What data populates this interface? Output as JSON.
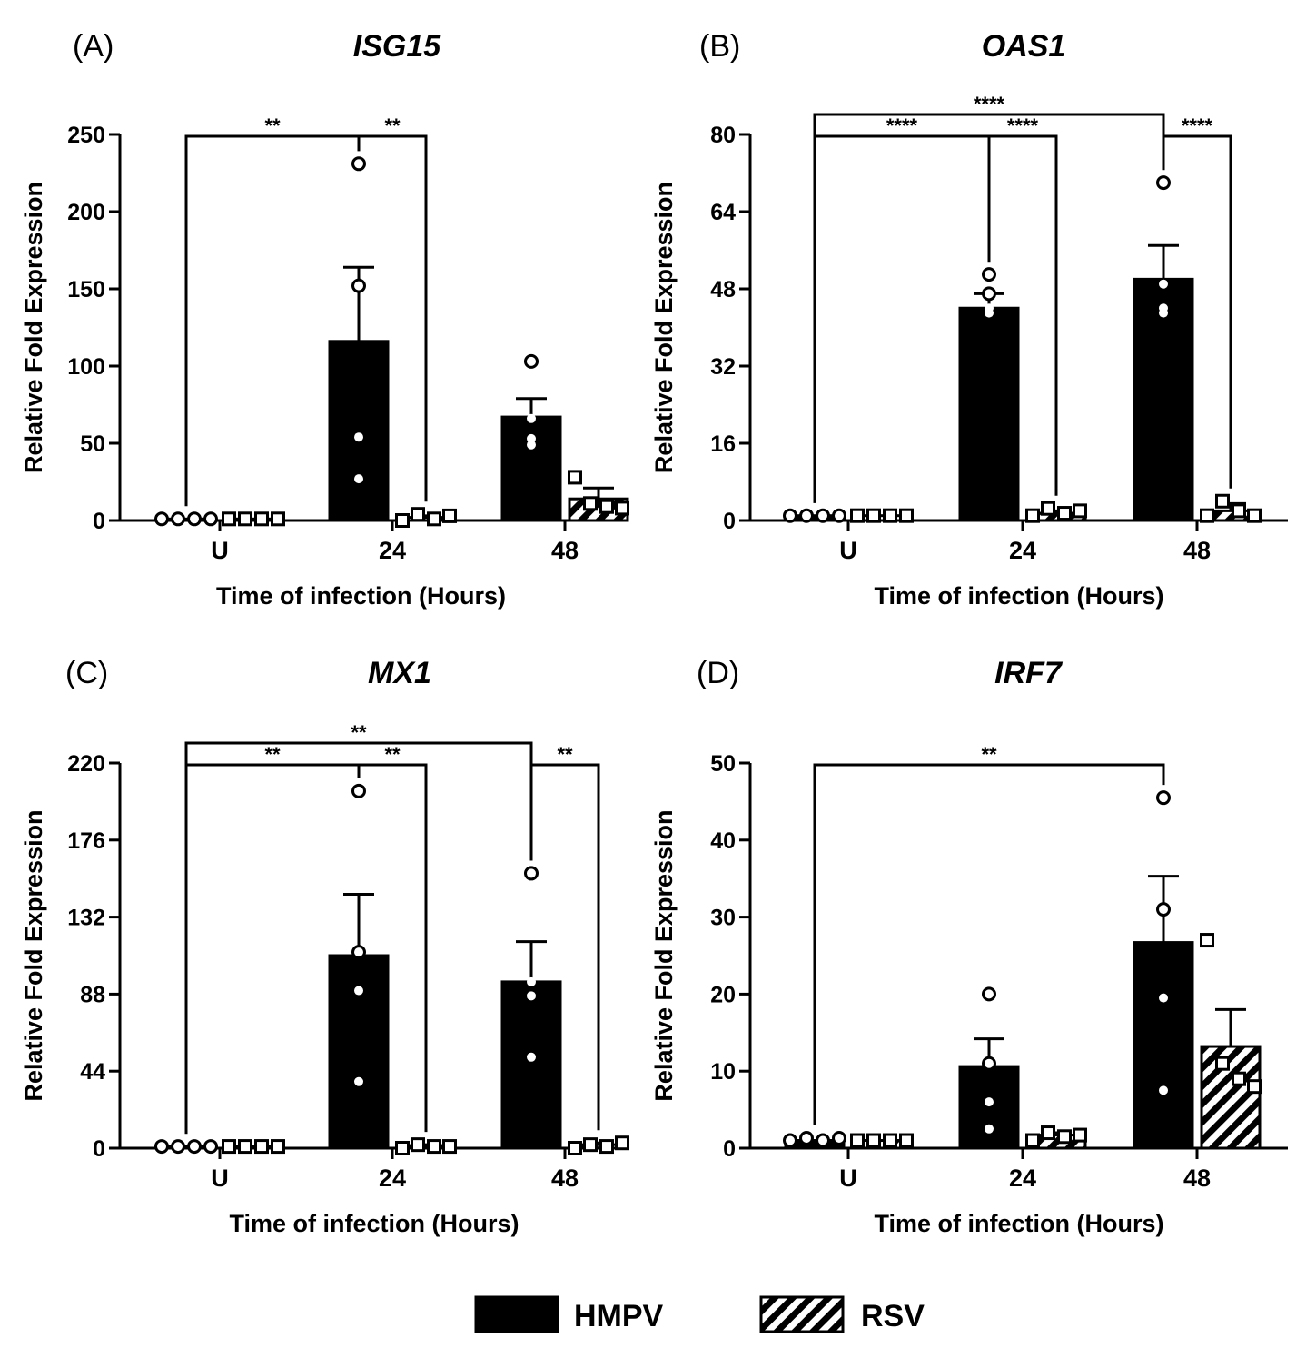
{
  "figure": {
    "legend": [
      {
        "name": "HMPV",
        "fill": "solid"
      },
      {
        "name": "RSV",
        "fill": "hatch"
      }
    ]
  },
  "chart_data": [
    {
      "type": "bar",
      "panel_label": "(A)",
      "title": "ISG15",
      "xlabel": "Time of infection (Hours)",
      "ylabel": "Relative Fold Expression",
      "categories": [
        "U",
        "24",
        "48"
      ],
      "ylim": [
        0,
        250
      ],
      "yticks": [
        0,
        50,
        100,
        150,
        200,
        250
      ],
      "series": [
        {
          "name": "HMPV",
          "values": [
            1,
            116,
            67
          ],
          "errors": [
            0,
            48,
            12
          ],
          "points": [
            [
              1,
              1,
              1,
              1
            ],
            [
              231,
              152,
              54,
              27
            ],
            [
              103,
              66,
              53,
              49
            ]
          ]
        },
        {
          "name": "RSV",
          "values": [
            1,
            2,
            14
          ],
          "errors": [
            0,
            1,
            7
          ],
          "points": [
            [
              1,
              1,
              1,
              1
            ],
            [
              0,
              4,
              1,
              3
            ],
            [
              28,
              11,
              9,
              8
            ]
          ]
        }
      ],
      "significance": [
        {
          "from": "U:HMPV",
          "to": "24:HMPV",
          "label": "**",
          "level": 1
        },
        {
          "from": "24:HMPV",
          "to": "24:RSV",
          "label": "**",
          "level": 1
        }
      ]
    },
    {
      "type": "bar",
      "panel_label": "(B)",
      "title": "OAS1",
      "xlabel": "Time of infection (Hours)",
      "ylabel": "Relative Fold Expression",
      "categories": [
        "U",
        "24",
        "48"
      ],
      "ylim": [
        0,
        80
      ],
      "yticks": [
        0,
        16,
        32,
        48,
        64,
        80
      ],
      "series": [
        {
          "name": "HMPV",
          "values": [
            1,
            44,
            50
          ],
          "errors": [
            0,
            3,
            7
          ],
          "points": [
            [
              1,
              1,
              1,
              1
            ],
            [
              51,
              47,
              43,
              44
            ],
            [
              70,
              49,
              43,
              44
            ]
          ]
        },
        {
          "name": "RSV",
          "values": [
            1,
            1.5,
            2
          ],
          "errors": [
            0,
            0.5,
            1.5
          ],
          "points": [
            [
              1,
              1,
              1,
              1
            ],
            [
              1,
              2.5,
              1.5,
              2
            ],
            [
              1,
              4,
              2,
              1
            ]
          ]
        }
      ],
      "significance": [
        {
          "from": "U:HMPV",
          "to": "48:HMPV",
          "label": "****",
          "level": 2
        },
        {
          "from": "U:HMPV",
          "to": "24:HMPV",
          "label": "****",
          "level": 1
        },
        {
          "from": "24:HMPV",
          "to": "24:RSV",
          "label": "****",
          "level": 1
        },
        {
          "from": "48:HMPV",
          "to": "48:RSV",
          "label": "****",
          "level": 1
        }
      ]
    },
    {
      "type": "bar",
      "panel_label": "(C)",
      "title": "MX1",
      "xlabel": "Time of infection (Hours)",
      "ylabel": "Relative Fold Expression",
      "categories": [
        "U",
        "24",
        "48"
      ],
      "ylim": [
        0,
        220
      ],
      "yticks": [
        0,
        44,
        88,
        132,
        176,
        220
      ],
      "series": [
        {
          "name": "HMPV",
          "values": [
            1,
            110,
            95
          ],
          "errors": [
            0,
            35,
            23
          ],
          "points": [
            [
              1,
              1,
              1,
              1
            ],
            [
              204,
              112,
              90,
              38
            ],
            [
              157,
              95,
              87,
              52
            ]
          ]
        },
        {
          "name": "RSV",
          "values": [
            1,
            1.5,
            2
          ],
          "errors": [
            0,
            0.5,
            1
          ],
          "points": [
            [
              1,
              1,
              1,
              1
            ],
            [
              0,
              2,
              1,
              1
            ],
            [
              0,
              2,
              1,
              3
            ]
          ]
        }
      ],
      "significance": [
        {
          "from": "U:HMPV",
          "to": "48:HMPV",
          "label": "**",
          "level": 2
        },
        {
          "from": "U:HMPV",
          "to": "24:HMPV",
          "label": "**",
          "level": 1
        },
        {
          "from": "24:HMPV",
          "to": "24:RSV",
          "label": "**",
          "level": 1
        },
        {
          "from": "48:HMPV",
          "to": "48:RSV",
          "label": "**",
          "level": 1
        }
      ]
    },
    {
      "type": "bar",
      "panel_label": "(D)",
      "title": "IRF7",
      "xlabel": "Time of infection (Hours)",
      "ylabel": "Relative Fold Expression",
      "categories": [
        "U",
        "24",
        "48"
      ],
      "ylim": [
        0,
        50
      ],
      "yticks": [
        0,
        10,
        20,
        30,
        40,
        50
      ],
      "series": [
        {
          "name": "HMPV",
          "values": [
            1,
            10.6,
            26.7
          ],
          "errors": [
            0,
            3.6,
            8.6
          ],
          "points": [
            [
              1,
              1.3,
              1,
              1.3
            ],
            [
              20,
              11,
              6,
              2.5
            ],
            [
              45.5,
              31,
              19.5,
              7.5
            ]
          ]
        },
        {
          "name": "RSV",
          "values": [
            1,
            1.7,
            13.2
          ],
          "errors": [
            0,
            0.3,
            4.8
          ],
          "points": [
            [
              1,
              1,
              1,
              1
            ],
            [
              1,
              2,
              1.5,
              1.7
            ],
            [
              27,
              11,
              9,
              8
            ]
          ]
        }
      ],
      "significance": [
        {
          "from": "U:HMPV",
          "to": "48:HMPV",
          "label": "**",
          "level": 1
        }
      ]
    }
  ]
}
